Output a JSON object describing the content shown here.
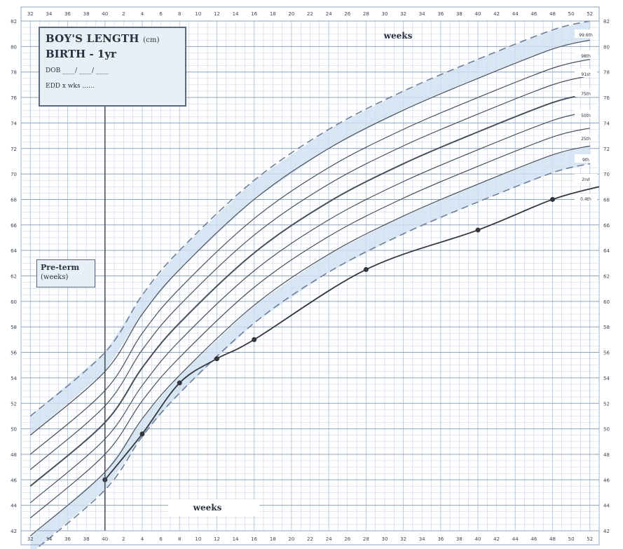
{
  "chart_data": {
    "type": "line",
    "title": "BOY'S LENGTH",
    "title_unit": "(cm)",
    "subtitle": "BIRTH - 1yr",
    "form_fields": {
      "dob": "DOB ____/ ____/ ____",
      "edd": "EDD x wks ......"
    },
    "preterm_label": "Pre-term",
    "preterm_sub": "(weeks)",
    "x_top_label": "weeks",
    "x_bottom_label": "weeks",
    "ylim": [
      42,
      82
    ],
    "y_ticks": [
      42,
      44,
      46,
      48,
      50,
      52,
      54,
      56,
      58,
      60,
      62,
      64,
      66,
      68,
      70,
      72,
      74,
      76,
      78,
      80,
      82
    ],
    "x_range_weeks": [
      -9,
      53
    ],
    "x_ticks_weeks": [
      -8,
      -6,
      -4,
      -2,
      0,
      4,
      8,
      12,
      16,
      20,
      24,
      28,
      32,
      36,
      40,
      44,
      48,
      52
    ],
    "x_tick_labels": [
      "32",
      "34",
      "36",
      "38",
      "40",
      "4",
      "8",
      "12",
      "16",
      "20",
      "24",
      "28",
      "32",
      "36",
      "40",
      "44",
      "48",
      "52"
    ],
    "x_ticks_labelled": [
      -8,
      -6,
      -4,
      -2,
      0,
      2,
      4,
      6,
      8,
      10,
      12,
      14,
      16,
      18,
      20,
      22,
      24,
      26,
      28,
      30,
      32,
      34,
      36,
      38,
      40,
      42,
      44,
      46,
      48,
      50,
      52
    ],
    "x_ticks_labels_all": [
      "32",
      "34",
      "36",
      "38",
      "40",
      "2",
      "4",
      "6",
      "8",
      "10",
      "12",
      "14",
      "16",
      "18",
      "20",
      "22",
      "24",
      "26",
      "28",
      "30",
      "32",
      "34",
      "36",
      "38",
      "40",
      "42",
      "44",
      "46",
      "48",
      "50",
      "52"
    ],
    "centile_labels": [
      "99.6th",
      "98th",
      "91st",
      "75th",
      "50th",
      "25th",
      "9th",
      "2nd",
      "0.4th"
    ],
    "series": [
      {
        "name": "99.6th",
        "style": "dashed",
        "points": [
          [
            -8,
            51.0
          ],
          [
            0,
            56.0
          ],
          [
            4,
            60.5
          ],
          [
            8,
            64.0
          ],
          [
            16,
            69.5
          ],
          [
            24,
            73.5
          ],
          [
            32,
            76.5
          ],
          [
            40,
            79.0
          ],
          [
            48,
            81.3
          ],
          [
            52,
            82.0
          ]
        ]
      },
      {
        "name": "98th",
        "style": "solid",
        "points": [
          [
            -8,
            49.5
          ],
          [
            0,
            54.5
          ],
          [
            4,
            59.0
          ],
          [
            8,
            62.5
          ],
          [
            16,
            68.0
          ],
          [
            24,
            72.0
          ],
          [
            32,
            75.0
          ],
          [
            40,
            77.5
          ],
          [
            48,
            79.8
          ],
          [
            52,
            80.5
          ]
        ]
      },
      {
        "name": "91st",
        "style": "solid",
        "points": [
          [
            -8,
            48.0
          ],
          [
            0,
            53.0
          ],
          [
            4,
            57.5
          ],
          [
            8,
            61.0
          ],
          [
            16,
            66.5
          ],
          [
            24,
            70.5
          ],
          [
            32,
            73.5
          ],
          [
            40,
            76.0
          ],
          [
            48,
            78.3
          ],
          [
            52,
            79.0
          ]
        ]
      },
      {
        "name": "75th",
        "style": "solid",
        "points": [
          [
            -8,
            46.8
          ],
          [
            0,
            51.8
          ],
          [
            4,
            56.2
          ],
          [
            8,
            59.7
          ],
          [
            16,
            65.2
          ],
          [
            24,
            69.2
          ],
          [
            32,
            72.2
          ],
          [
            40,
            74.7
          ],
          [
            48,
            77.0
          ],
          [
            52,
            77.7
          ]
        ]
      },
      {
        "name": "50th",
        "style": "bold",
        "points": [
          [
            -8,
            45.5
          ],
          [
            0,
            50.5
          ],
          [
            4,
            54.8
          ],
          [
            8,
            58.3
          ],
          [
            16,
            63.8
          ],
          [
            24,
            67.8
          ],
          [
            32,
            70.8
          ],
          [
            40,
            73.3
          ],
          [
            48,
            75.6
          ],
          [
            52,
            76.3
          ]
        ]
      },
      {
        "name": "25th",
        "style": "solid",
        "points": [
          [
            -8,
            44.2
          ],
          [
            0,
            49.2
          ],
          [
            4,
            53.4
          ],
          [
            8,
            56.9
          ],
          [
            16,
            62.4
          ],
          [
            24,
            66.4
          ],
          [
            32,
            69.4
          ],
          [
            40,
            71.9
          ],
          [
            48,
            74.2
          ],
          [
            52,
            74.9
          ]
        ]
      },
      {
        "name": "9th",
        "style": "solid",
        "points": [
          [
            -8,
            43.0
          ],
          [
            0,
            48.0
          ],
          [
            4,
            52.2
          ],
          [
            8,
            55.6
          ],
          [
            16,
            61.1
          ],
          [
            24,
            65.1
          ],
          [
            32,
            68.1
          ],
          [
            40,
            70.6
          ],
          [
            48,
            72.9
          ],
          [
            52,
            73.6
          ]
        ]
      },
      {
        "name": "2nd",
        "style": "solid",
        "points": [
          [
            -8,
            41.6
          ],
          [
            0,
            46.6
          ],
          [
            4,
            50.8
          ],
          [
            8,
            54.2
          ],
          [
            16,
            59.7
          ],
          [
            24,
            63.7
          ],
          [
            32,
            66.7
          ],
          [
            40,
            69.2
          ],
          [
            48,
            71.5
          ],
          [
            52,
            72.2
          ]
        ]
      },
      {
        "name": "0.4th",
        "style": "dashed",
        "points": [
          [
            -8,
            40.2
          ],
          [
            0,
            45.2
          ],
          [
            4,
            49.4
          ],
          [
            8,
            52.8
          ],
          [
            16,
            58.3
          ],
          [
            24,
            62.3
          ],
          [
            32,
            65.3
          ],
          [
            40,
            67.8
          ],
          [
            48,
            70.1
          ],
          [
            52,
            70.8
          ]
        ]
      },
      {
        "name": "",
        "style": "plot",
        "points": [
          [
            0,
            46.0
          ],
          [
            4,
            49.6
          ],
          [
            8,
            53.6
          ],
          [
            12,
            55.5
          ],
          [
            16,
            57.0
          ],
          [
            28,
            62.5
          ],
          [
            40,
            65.6
          ],
          [
            48,
            68.0
          ],
          [
            53,
            69.0
          ]
        ]
      }
    ],
    "plotted_points": [
      [
        0,
        46.0
      ],
      [
        4,
        49.6
      ],
      [
        8,
        53.6
      ],
      [
        12,
        55.5
      ],
      [
        16,
        57.0
      ],
      [
        28,
        62.5
      ],
      [
        40,
        65.6
      ],
      [
        48,
        68.0
      ]
    ],
    "colors": {
      "grid": "#b9c8dc",
      "grid_major": "#8fa3bd",
      "band": "#cfe0f1",
      "line": "#4a4f5c",
      "plot": "#33363d"
    }
  }
}
